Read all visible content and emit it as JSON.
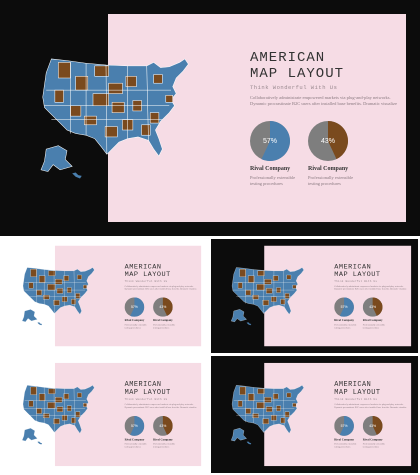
{
  "slide": {
    "title_line1": "AMERICAN",
    "title_line2": "MAP LAYOUT",
    "subtitle": "Think Wonderful With Us",
    "body": "Collaboratively administrate empowered markets via plug-and-play networks. Dynamic procrastinate B2C users after installed base benefits. Dramatic visualize",
    "companies": [
      {
        "name": "Rival Company",
        "percent": 57,
        "percent_label": "57%",
        "desc": "Professionally extensible testing procedures"
      },
      {
        "name": "Rival Company",
        "percent": 43,
        "percent_label": "43%",
        "desc": "Professionally extensible testing procedures"
      }
    ]
  },
  "slides": [
    {
      "theme": "dark"
    },
    {
      "theme": "light"
    },
    {
      "theme": "dark"
    },
    {
      "theme": "light"
    },
    {
      "theme": "dark"
    }
  ],
  "colors": {
    "dark_bg": "#0c0c0c",
    "panel": "#f6dce5",
    "map_blue": "#4a7fae",
    "map_brown": "#7a4a1e",
    "pie_gray": "#7e7e7e",
    "pie_blue": "#4a7fae",
    "pie_brown": "#7a4a1e"
  }
}
